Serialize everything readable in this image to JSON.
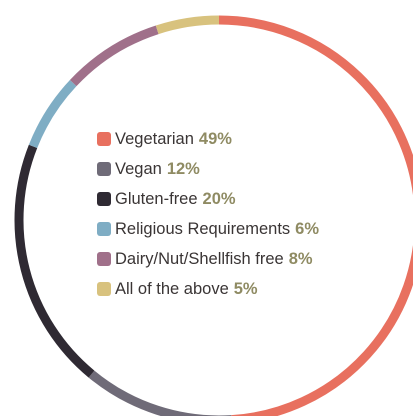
{
  "chart_data": {
    "type": "pie",
    "categories": [
      "Vegetarian",
      "Vegan",
      "Gluten-free",
      "Religious Requirements",
      "Dairy/Nut/Shellfish free",
      "All of the above"
    ],
    "values": [
      49,
      12,
      20,
      6,
      8,
      5
    ],
    "value_labels": [
      "49%",
      "12%",
      "20%",
      "6%",
      "8%",
      "5%"
    ],
    "unit": "%",
    "colors": [
      "#e8705f",
      "#6f6b78",
      "#2f2a33",
      "#7fadc4",
      "#a0708a",
      "#d8c27e"
    ],
    "style": "donut-ring",
    "legend_position": "center"
  }
}
